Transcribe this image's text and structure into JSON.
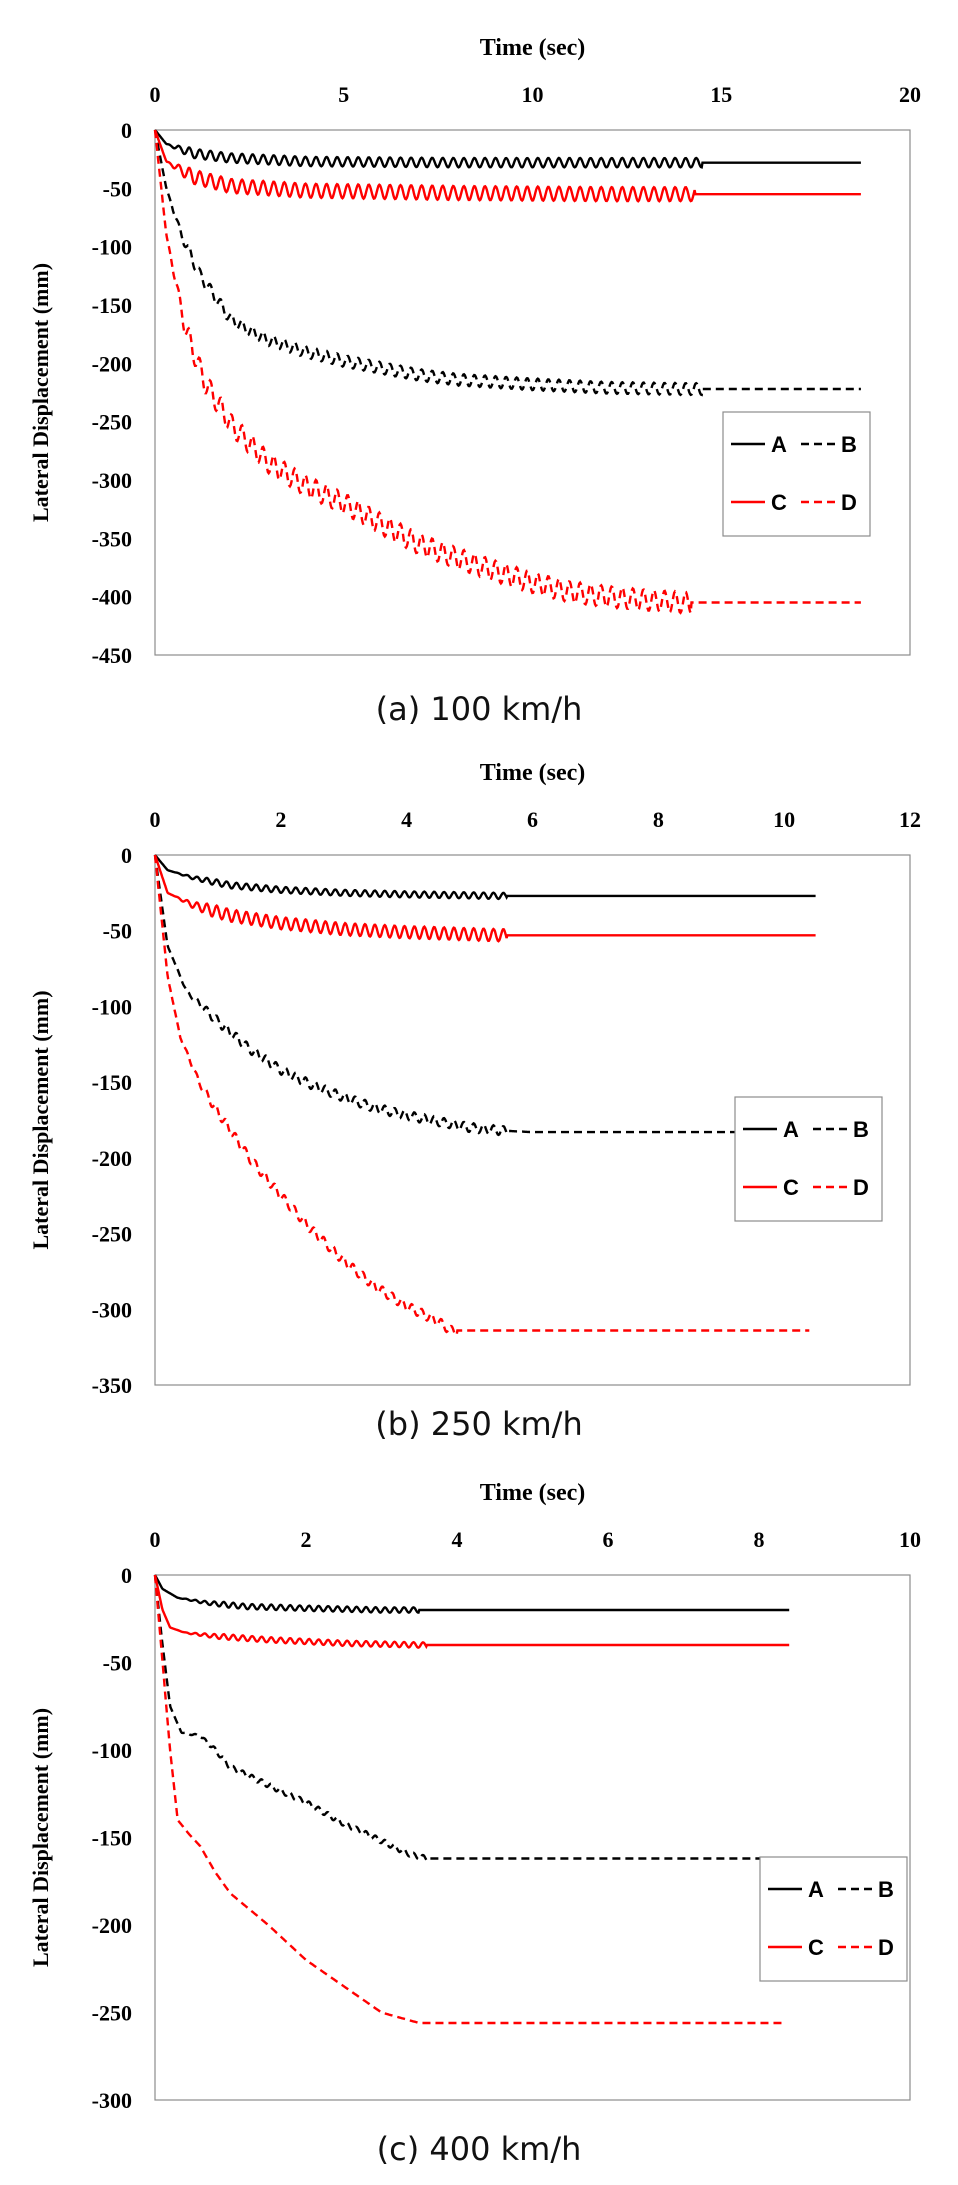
{
  "chart_data": [
    {
      "type": "line",
      "caption": "(a)  100 km/h",
      "xlabel": "Time (sec)",
      "ylabel": "Lateral Displacement (mm)",
      "xlim": [
        0,
        20
      ],
      "ylim": [
        -450,
        0
      ],
      "xticks": [
        0,
        5,
        10,
        15,
        20
      ],
      "yticks": [
        0,
        -50,
        -100,
        -150,
        -200,
        -250,
        -300,
        -350,
        -400,
        -450
      ],
      "grid": false,
      "legend_position": "right",
      "legend_labels": [
        "A",
        "B",
        "C",
        "D"
      ],
      "series": [
        {
          "name": "A",
          "color": "#000000",
          "dash": "solid",
          "osc_amp": 4,
          "osc_until": 14.5,
          "x": [
            0,
            0.3,
            1,
            2,
            4,
            8,
            12,
            15,
            18.7
          ],
          "y": [
            0,
            -12,
            -20,
            -24,
            -27,
            -28,
            -28,
            -28,
            -28
          ]
        },
        {
          "name": "B",
          "color": "#000000",
          "dash": "dashed",
          "osc_amp": 5,
          "osc_until": 14.5,
          "x": [
            0,
            0.3,
            0.7,
            1.2,
            2,
            2.5,
            3,
            4,
            5,
            6,
            7,
            8,
            10,
            12,
            14,
            16,
            18.7
          ],
          "y": [
            0,
            -50,
            -90,
            -125,
            -162,
            -172,
            -180,
            -190,
            -198,
            -204,
            -210,
            -214,
            -218,
            -221,
            -222,
            -222,
            -222
          ]
        },
        {
          "name": "C",
          "color": "#ff0000",
          "dash": "solid",
          "osc_amp": 6,
          "osc_until": 14.3,
          "x": [
            0,
            0.3,
            1,
            2,
            4,
            8,
            12,
            15,
            18.7
          ],
          "y": [
            0,
            -27,
            -40,
            -48,
            -52,
            -54,
            -55,
            -55,
            -55
          ]
        },
        {
          "name": "D",
          "color": "#ff0000",
          "dash": "dashed",
          "osc_amp": 9,
          "osc_until": 14.2,
          "x": [
            0,
            0.3,
            0.8,
            1.3,
            2,
            3,
            4,
            5,
            6,
            7,
            8,
            9,
            10,
            11,
            12,
            13,
            14,
            15,
            16,
            18.7
          ],
          "y": [
            0,
            -90,
            -170,
            -215,
            -252,
            -285,
            -305,
            -320,
            -338,
            -355,
            -367,
            -378,
            -388,
            -396,
            -400,
            -403,
            -405,
            -405,
            -405,
            -405
          ]
        }
      ]
    },
    {
      "type": "line",
      "caption": "(b)  250 km/h",
      "xlabel": "Time (sec)",
      "ylabel": "Lateral Displacement (mm)",
      "xlim": [
        0,
        12
      ],
      "ylim": [
        -350,
        0
      ],
      "xticks": [
        0,
        2,
        4,
        6,
        8,
        10,
        12
      ],
      "yticks": [
        0,
        -50,
        -100,
        -150,
        -200,
        -250,
        -300,
        -350
      ],
      "grid": false,
      "legend_position": "right",
      "legend_labels": [
        "A",
        "B",
        "C",
        "D"
      ],
      "series": [
        {
          "name": "A",
          "color": "#000000",
          "dash": "solid",
          "osc_amp": 2,
          "osc_until": 5.6,
          "x": [
            0,
            0.2,
            0.6,
            1.2,
            2,
            3,
            4,
            5.5,
            8,
            10.5
          ],
          "y": [
            0,
            -10,
            -15,
            -20,
            -23,
            -25,
            -26,
            -27,
            -27,
            -27
          ]
        },
        {
          "name": "B",
          "color": "#000000",
          "dash": "dashed",
          "osc_amp": 3,
          "osc_until": 5.6,
          "x": [
            0,
            0.2,
            0.5,
            1,
            1.5,
            2,
            2.5,
            3,
            3.5,
            4,
            4.5,
            5,
            5.5,
            6,
            8,
            10.5
          ],
          "y": [
            0,
            -60,
            -90,
            -110,
            -128,
            -142,
            -152,
            -160,
            -167,
            -172,
            -176,
            -180,
            -182,
            -183,
            -183,
            -183
          ]
        },
        {
          "name": "C",
          "color": "#ff0000",
          "dash": "solid",
          "osc_amp": 4,
          "osc_until": 5.6,
          "x": [
            0,
            0.2,
            0.6,
            1.2,
            2,
            3,
            4,
            5.5,
            8,
            10.5
          ],
          "y": [
            0,
            -25,
            -33,
            -40,
            -45,
            -49,
            -51,
            -53,
            -53,
            -53
          ]
        },
        {
          "name": "D",
          "color": "#ff0000",
          "dash": "dashed",
          "osc_amp": 3,
          "osc_until": 4.8,
          "x": [
            0,
            0.2,
            0.4,
            0.7,
            1,
            1.5,
            2,
            2.5,
            3,
            3.5,
            4,
            4.5,
            4.7,
            5,
            6,
            8,
            10.4
          ],
          "y": [
            0,
            -80,
            -120,
            -150,
            -170,
            -200,
            -225,
            -248,
            -268,
            -285,
            -298,
            -308,
            -314,
            -314,
            -314,
            -314,
            -314
          ]
        }
      ]
    },
    {
      "type": "line",
      "caption": "(c)  400 km/h",
      "xlabel": "Time (sec)",
      "ylabel": "Lateral Displacement (mm)",
      "xlim": [
        0,
        10
      ],
      "ylim": [
        -300,
        0
      ],
      "xticks": [
        0,
        2,
        4,
        6,
        8,
        10
      ],
      "yticks": [
        0,
        -50,
        -100,
        -150,
        -200,
        -250,
        -300
      ],
      "grid": false,
      "legend_position": "right",
      "legend_labels": [
        "A",
        "B",
        "C",
        "D"
      ],
      "series": [
        {
          "name": "A",
          "color": "#000000",
          "dash": "solid",
          "osc_amp": 1.5,
          "osc_until": 3.5,
          "x": [
            0,
            0.1,
            0.3,
            0.7,
            1.2,
            2,
            3,
            3.5,
            6,
            8.4
          ],
          "y": [
            0,
            -8,
            -13,
            -16,
            -18,
            -19,
            -20,
            -20,
            -20,
            -20
          ]
        },
        {
          "name": "B",
          "color": "#000000",
          "dash": "dashed",
          "osc_amp": 1.5,
          "osc_until": 3.6,
          "x": [
            0,
            0.1,
            0.2,
            0.35,
            0.6,
            0.8,
            1,
            1.5,
            2,
            2.5,
            3,
            3.4,
            3.6,
            4,
            6,
            8.4
          ],
          "y": [
            0,
            -40,
            -75,
            -90,
            -92,
            -100,
            -110,
            -120,
            -130,
            -142,
            -152,
            -160,
            -162,
            -162,
            -162,
            -162
          ]
        },
        {
          "name": "C",
          "color": "#ff0000",
          "dash": "solid",
          "osc_amp": 1.5,
          "osc_until": 3.6,
          "x": [
            0,
            0.1,
            0.2,
            0.4,
            0.8,
            1.5,
            2.5,
            3.5,
            6,
            8.4
          ],
          "y": [
            0,
            -20,
            -30,
            -33,
            -35,
            -37,
            -39,
            -40,
            -40,
            -40
          ]
        },
        {
          "name": "D",
          "color": "#ff0000",
          "dash": "dashed",
          "osc_amp": 0,
          "osc_until": 0,
          "x": [
            0,
            0.1,
            0.2,
            0.3,
            0.45,
            0.6,
            0.8,
            1,
            1.5,
            2,
            2.5,
            3,
            3.5,
            4,
            6,
            8.3
          ],
          "y": [
            0,
            -50,
            -100,
            -140,
            -148,
            -155,
            -170,
            -182,
            -200,
            -220,
            -235,
            -250,
            -256,
            -256,
            -256,
            -256
          ]
        }
      ]
    }
  ]
}
